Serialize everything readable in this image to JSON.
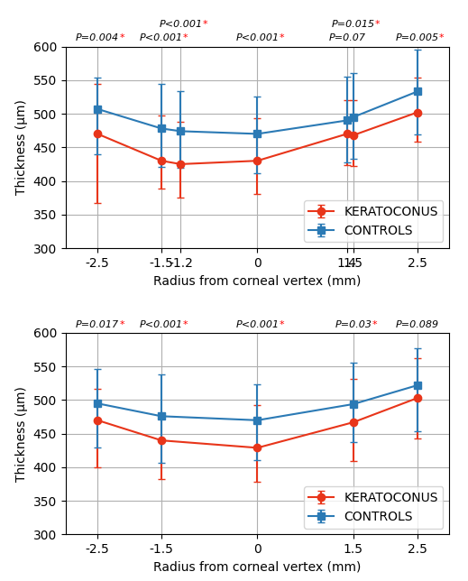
{
  "chart_data": [
    {
      "type": "line",
      "x": [
        -2.5,
        -1.5,
        -1.2,
        0,
        1.4,
        1.5,
        2.5
      ],
      "xlabel": "Radius from corneal vertex (mm)",
      "ylabel": "Thickness (μm)",
      "xlim": [
        -3.0,
        3.0
      ],
      "xticks": [
        -2.5,
        -1.5,
        -1.2,
        0,
        1.4,
        1.5,
        2.5
      ],
      "ylim": [
        300,
        600
      ],
      "yticks": [
        300,
        350,
        400,
        450,
        500,
        550,
        600
      ],
      "grid": true,
      "legend": "lower right",
      "series": [
        {
          "name": "KERATOCONUS",
          "color": "#e8351a",
          "marker": "circle",
          "values": [
            470,
            430,
            425,
            430,
            470,
            468,
            502
          ],
          "error_low": [
            103,
            41,
            50,
            50,
            47,
            46,
            44
          ],
          "error_high": [
            75,
            68,
            63,
            63,
            50,
            52,
            52
          ]
        },
        {
          "name": "CONTROLS",
          "color": "#2b7ab5",
          "marker": "square",
          "values": [
            507,
            478,
            474,
            470,
            490,
            495,
            533
          ],
          "error_low": [
            67,
            57,
            54,
            59,
            63,
            62,
            64
          ],
          "error_high": [
            47,
            67,
            60,
            55,
            65,
            65,
            63
          ]
        }
      ],
      "annotations": [
        {
          "x": -2.5,
          "text": "P=0.004*"
        },
        {
          "x": -1.5,
          "text": "P<0.001*"
        },
        {
          "x": -1.2,
          "text": "P<0.001*"
        },
        {
          "x": 0,
          "text": "P<0.001*"
        },
        {
          "x": 1.4,
          "text": "P=0.07"
        },
        {
          "x": 1.5,
          "text": "P=0.015*"
        },
        {
          "x": 2.5,
          "text": "P=0.005*"
        }
      ]
    },
    {
      "type": "line",
      "x": [
        -2.5,
        -1.5,
        0,
        1.5,
        2.5
      ],
      "xlabel": "Radius from corneal vertex (mm)",
      "ylabel": "Thickness (μm)",
      "xlim": [
        -3.0,
        3.0
      ],
      "xticks": [
        -2.5,
        -1.5,
        0,
        1.5,
        2.5
      ],
      "ylim": [
        300,
        600
      ],
      "yticks": [
        300,
        350,
        400,
        450,
        500,
        550,
        600
      ],
      "grid": true,
      "legend": "lower right",
      "series": [
        {
          "name": "KERATOCONUS",
          "color": "#e8351a",
          "marker": "circle",
          "values": [
            470,
            440,
            429,
            467,
            503
          ],
          "error_low": [
            70,
            57,
            51,
            57,
            60
          ],
          "error_high": [
            47,
            40,
            63,
            65,
            60
          ]
        },
        {
          "name": "CONTROLS",
          "color": "#2b7ab5",
          "marker": "square",
          "values": [
            495,
            476,
            470,
            494,
            522
          ],
          "error_low": [
            65,
            70,
            59,
            57,
            68
          ],
          "error_high": [
            51,
            62,
            53,
            62,
            55
          ]
        }
      ],
      "annotations": [
        {
          "x": -2.5,
          "text": "P=0.017*"
        },
        {
          "x": -1.5,
          "text": "P<0.001*"
        },
        {
          "x": 0,
          "text": "P<0.001*"
        },
        {
          "x": 1.5,
          "text": "P=0.03*"
        },
        {
          "x": 2.5,
          "text": "P=0.089"
        }
      ]
    }
  ]
}
